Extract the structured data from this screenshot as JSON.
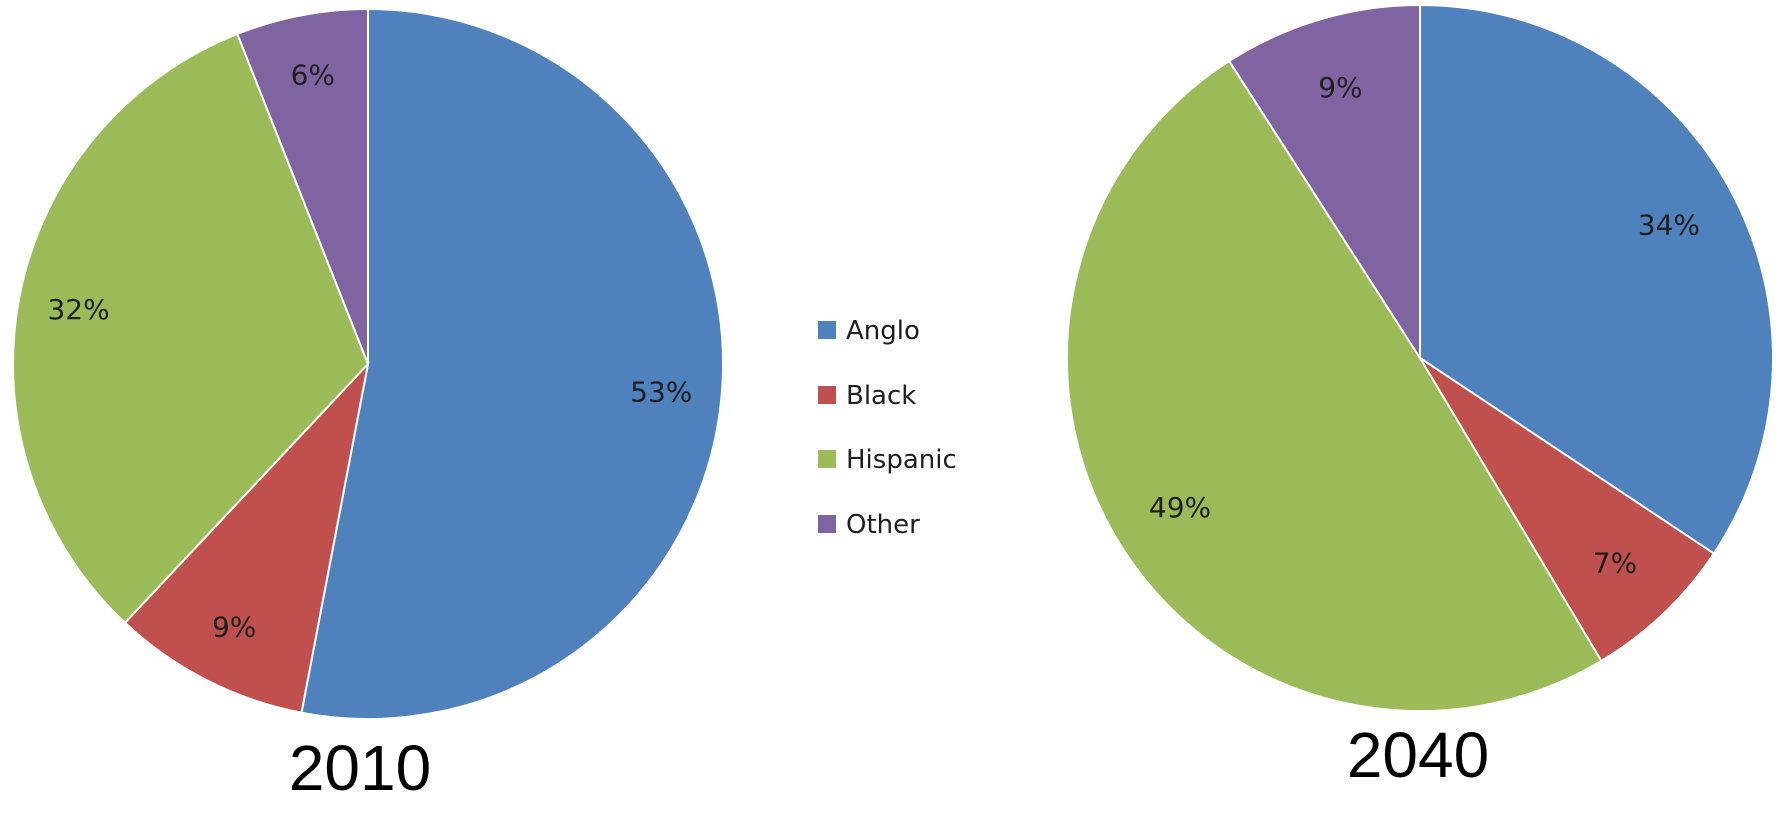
{
  "chart_data": [
    {
      "type": "pie",
      "title": "2010",
      "categories": [
        "Anglo",
        "Black",
        "Hispanic",
        "Other"
      ],
      "values": [
        53,
        9,
        32,
        6
      ],
      "data_labels": [
        "53%",
        "9%",
        "32%",
        "6%"
      ],
      "start": "12 o'clock",
      "direction": "clockwise"
    },
    {
      "type": "pie",
      "title": "2040",
      "categories": [
        "Anglo",
        "Black",
        "Hispanic",
        "Other"
      ],
      "values": [
        34,
        7,
        49,
        9
      ],
      "data_labels": [
        "34%",
        "7%",
        "49%",
        "9%"
      ],
      "start": "12 o'clock",
      "direction": "clockwise"
    }
  ],
  "legend": {
    "placement": "center between charts",
    "entries": [
      {
        "label": "Anglo",
        "color": "#4f81bd"
      },
      {
        "label": "Black",
        "color": "#c0504d"
      },
      {
        "label": "Hispanic",
        "color": "#9bbb59"
      },
      {
        "label": "Other",
        "color": "#8064a2"
      }
    ]
  }
}
